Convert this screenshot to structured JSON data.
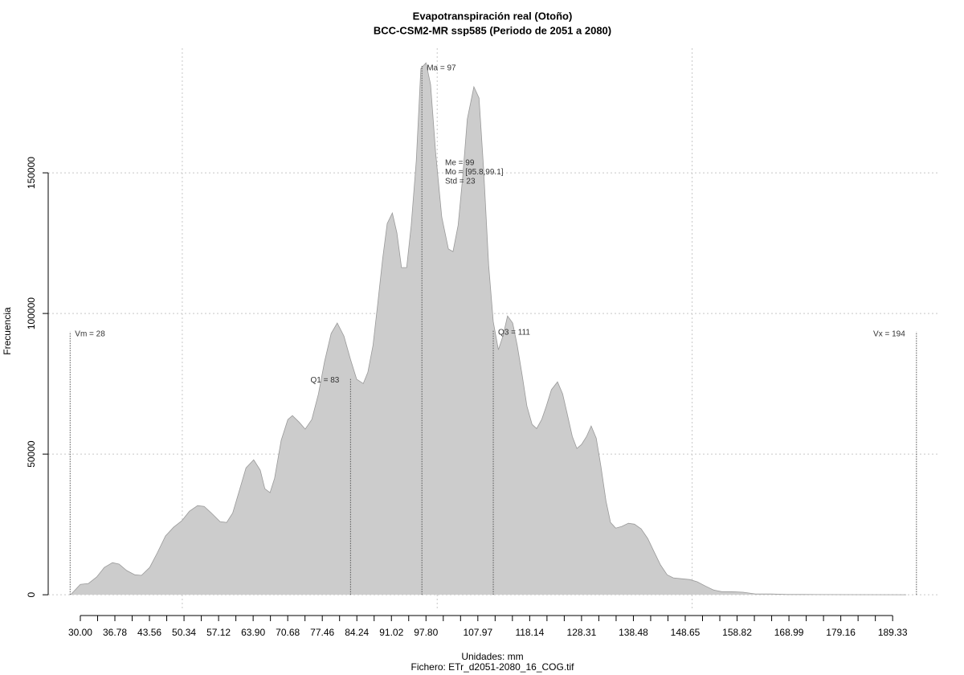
{
  "chart_data": {
    "type": "area",
    "title": "Evapotranspiración real (Otoño)",
    "subtitle": "BCC-CSM2-MR ssp585 (Periodo de 2051 a 2080)",
    "x_label": "Unidades: mm",
    "caption": "Fichero: ETr_d2051-2080_16_COG.tif",
    "y_label": "Frecuencia",
    "color": "#cccccc",
    "edge_color": "#999999",
    "x": [
      28.1,
      30,
      31.6,
      33.2,
      34.7,
      36.3,
      37.6,
      39.1,
      40.7,
      42.0,
      43.6,
      45.1,
      46.7,
      48.3,
      49.9,
      51.4,
      53.0,
      54.3,
      55.8,
      57.4,
      58.7,
      59.9,
      61.2,
      62.5,
      64.0,
      65.3,
      66.2,
      67.2,
      68.1,
      69.4,
      70.7,
      71.6,
      72.9,
      74.1,
      75.4,
      76.7,
      77.9,
      79.2,
      80.4,
      81.7,
      83.0,
      84.2,
      85.5,
      86.4,
      87.4,
      88.3,
      89.3,
      90.2,
      91.2,
      92.1,
      93.0,
      94.0,
      94.9,
      95.9,
      96.8,
      97.8,
      98.7,
      99.7,
      100.9,
      102.2,
      103.1,
      104.1,
      105.0,
      105.9,
      107.2,
      108.2,
      109.1,
      110.1,
      111.0,
      112.0,
      112.9,
      113.8,
      114.8,
      115.7,
      116.7,
      117.6,
      118.6,
      119.5,
      120.5,
      121.4,
      122.4,
      123.6,
      124.6,
      125.5,
      126.5,
      127.4,
      128.3,
      129.3,
      130.2,
      131.2,
      132.1,
      133.1,
      134.0,
      135.0,
      136.2,
      137.5,
      138.7,
      140.0,
      141.3,
      142.5,
      143.8,
      145.1,
      146.3,
      147.9,
      149.5,
      151.0,
      152.6,
      154.2,
      155.8,
      157.7,
      160.0,
      162.4,
      165.5,
      168.7,
      171.8,
      181.3,
      192
    ],
    "values": [
      0,
      3700,
      4000,
      6300,
      9700,
      11400,
      10900,
      8600,
      7100,
      6900,
      9700,
      14900,
      20900,
      24000,
      26300,
      29700,
      31700,
      31400,
      28900,
      26000,
      25700,
      29100,
      37100,
      45100,
      48000,
      44300,
      37700,
      36300,
      41400,
      54900,
      62300,
      63700,
      61400,
      58900,
      62300,
      71400,
      82900,
      92900,
      96600,
      92000,
      83700,
      76600,
      75100,
      79100,
      88600,
      102900,
      119400,
      132000,
      135700,
      128600,
      116300,
      116300,
      131400,
      154300,
      187100,
      189100,
      181400,
      157100,
      134300,
      122900,
      122000,
      131400,
      148600,
      169100,
      180600,
      176600,
      151400,
      117100,
      97100,
      87100,
      92000,
      99100,
      96600,
      88600,
      77700,
      67100,
      60600,
      59100,
      62300,
      67100,
      72900,
      75700,
      71400,
      64300,
      56300,
      52000,
      53400,
      56300,
      60000,
      55700,
      45700,
      33400,
      25700,
      23700,
      24300,
      25400,
      25100,
      23400,
      20000,
      15400,
      10600,
      7100,
      6000,
      5700,
      5400,
      4600,
      3100,
      1700,
      1100,
      1100,
      900,
      300,
      300,
      100,
      100,
      50,
      0
    ],
    "xlim": [
      23.7,
      198.6
    ],
    "ylim": [
      -5100,
      194300
    ],
    "xticks": [
      {
        "value": 30,
        "label": "30.00"
      },
      {
        "value": 36.78,
        "label": "36.78"
      },
      {
        "value": 43.56,
        "label": "43.56"
      },
      {
        "value": 50.34,
        "label": "50.34"
      },
      {
        "value": 57.12,
        "label": "57.12"
      },
      {
        "value": 63.9,
        "label": "63.90"
      },
      {
        "value": 70.68,
        "label": "70.68"
      },
      {
        "value": 77.46,
        "label": "77.46"
      },
      {
        "value": 84.24,
        "label": "84.24"
      },
      {
        "value": 91.02,
        "label": "91.02"
      },
      {
        "value": 97.8,
        "label": "97.80"
      },
      {
        "value": 107.97,
        "label": "107.97"
      },
      {
        "value": 118.14,
        "label": "118.14"
      },
      {
        "value": 128.31,
        "label": "128.31"
      },
      {
        "value": 138.48,
        "label": "138.48"
      },
      {
        "value": 148.65,
        "label": "148.65"
      },
      {
        "value": 158.82,
        "label": "158.82"
      },
      {
        "value": 168.99,
        "label": "168.99"
      },
      {
        "value": 179.16,
        "label": "179.16"
      },
      {
        "value": 189.33,
        "label": "189.33"
      }
    ],
    "xminor_ticks": [
      33.39,
      40.17,
      46.95,
      53.73,
      60.51,
      67.29,
      74.07,
      80.85,
      87.63,
      94.41,
      101.19,
      104.58,
      111.36,
      114.75,
      121.53,
      124.92,
      131.7,
      135.09,
      141.87,
      145.26,
      152.04,
      155.43,
      162.21,
      165.6,
      172.38,
      175.77,
      182.55,
      185.94
    ],
    "yticks": [
      0,
      50000,
      100000,
      150000
    ],
    "xgrid": [
      50,
      100,
      150
    ],
    "grid": true,
    "vlines": [
      {
        "x": 28,
        "y": 93500,
        "label": "Vm = 28",
        "side": "right"
      },
      {
        "x": 83,
        "y": 77000,
        "label": "Q1 = 83",
        "side": "left"
      },
      {
        "x": 97,
        "y": 188000,
        "label": "Ma = 97",
        "side": "right"
      },
      {
        "x": 111,
        "y": 94000,
        "label": "Q3 = 111",
        "side": "right"
      },
      {
        "x": 194,
        "y": 93500,
        "label": "Vx = 194",
        "side": "left"
      }
    ],
    "stats": [
      "Me = 99",
      "Mo = [95.8,99.1]",
      "Std = 23"
    ]
  }
}
